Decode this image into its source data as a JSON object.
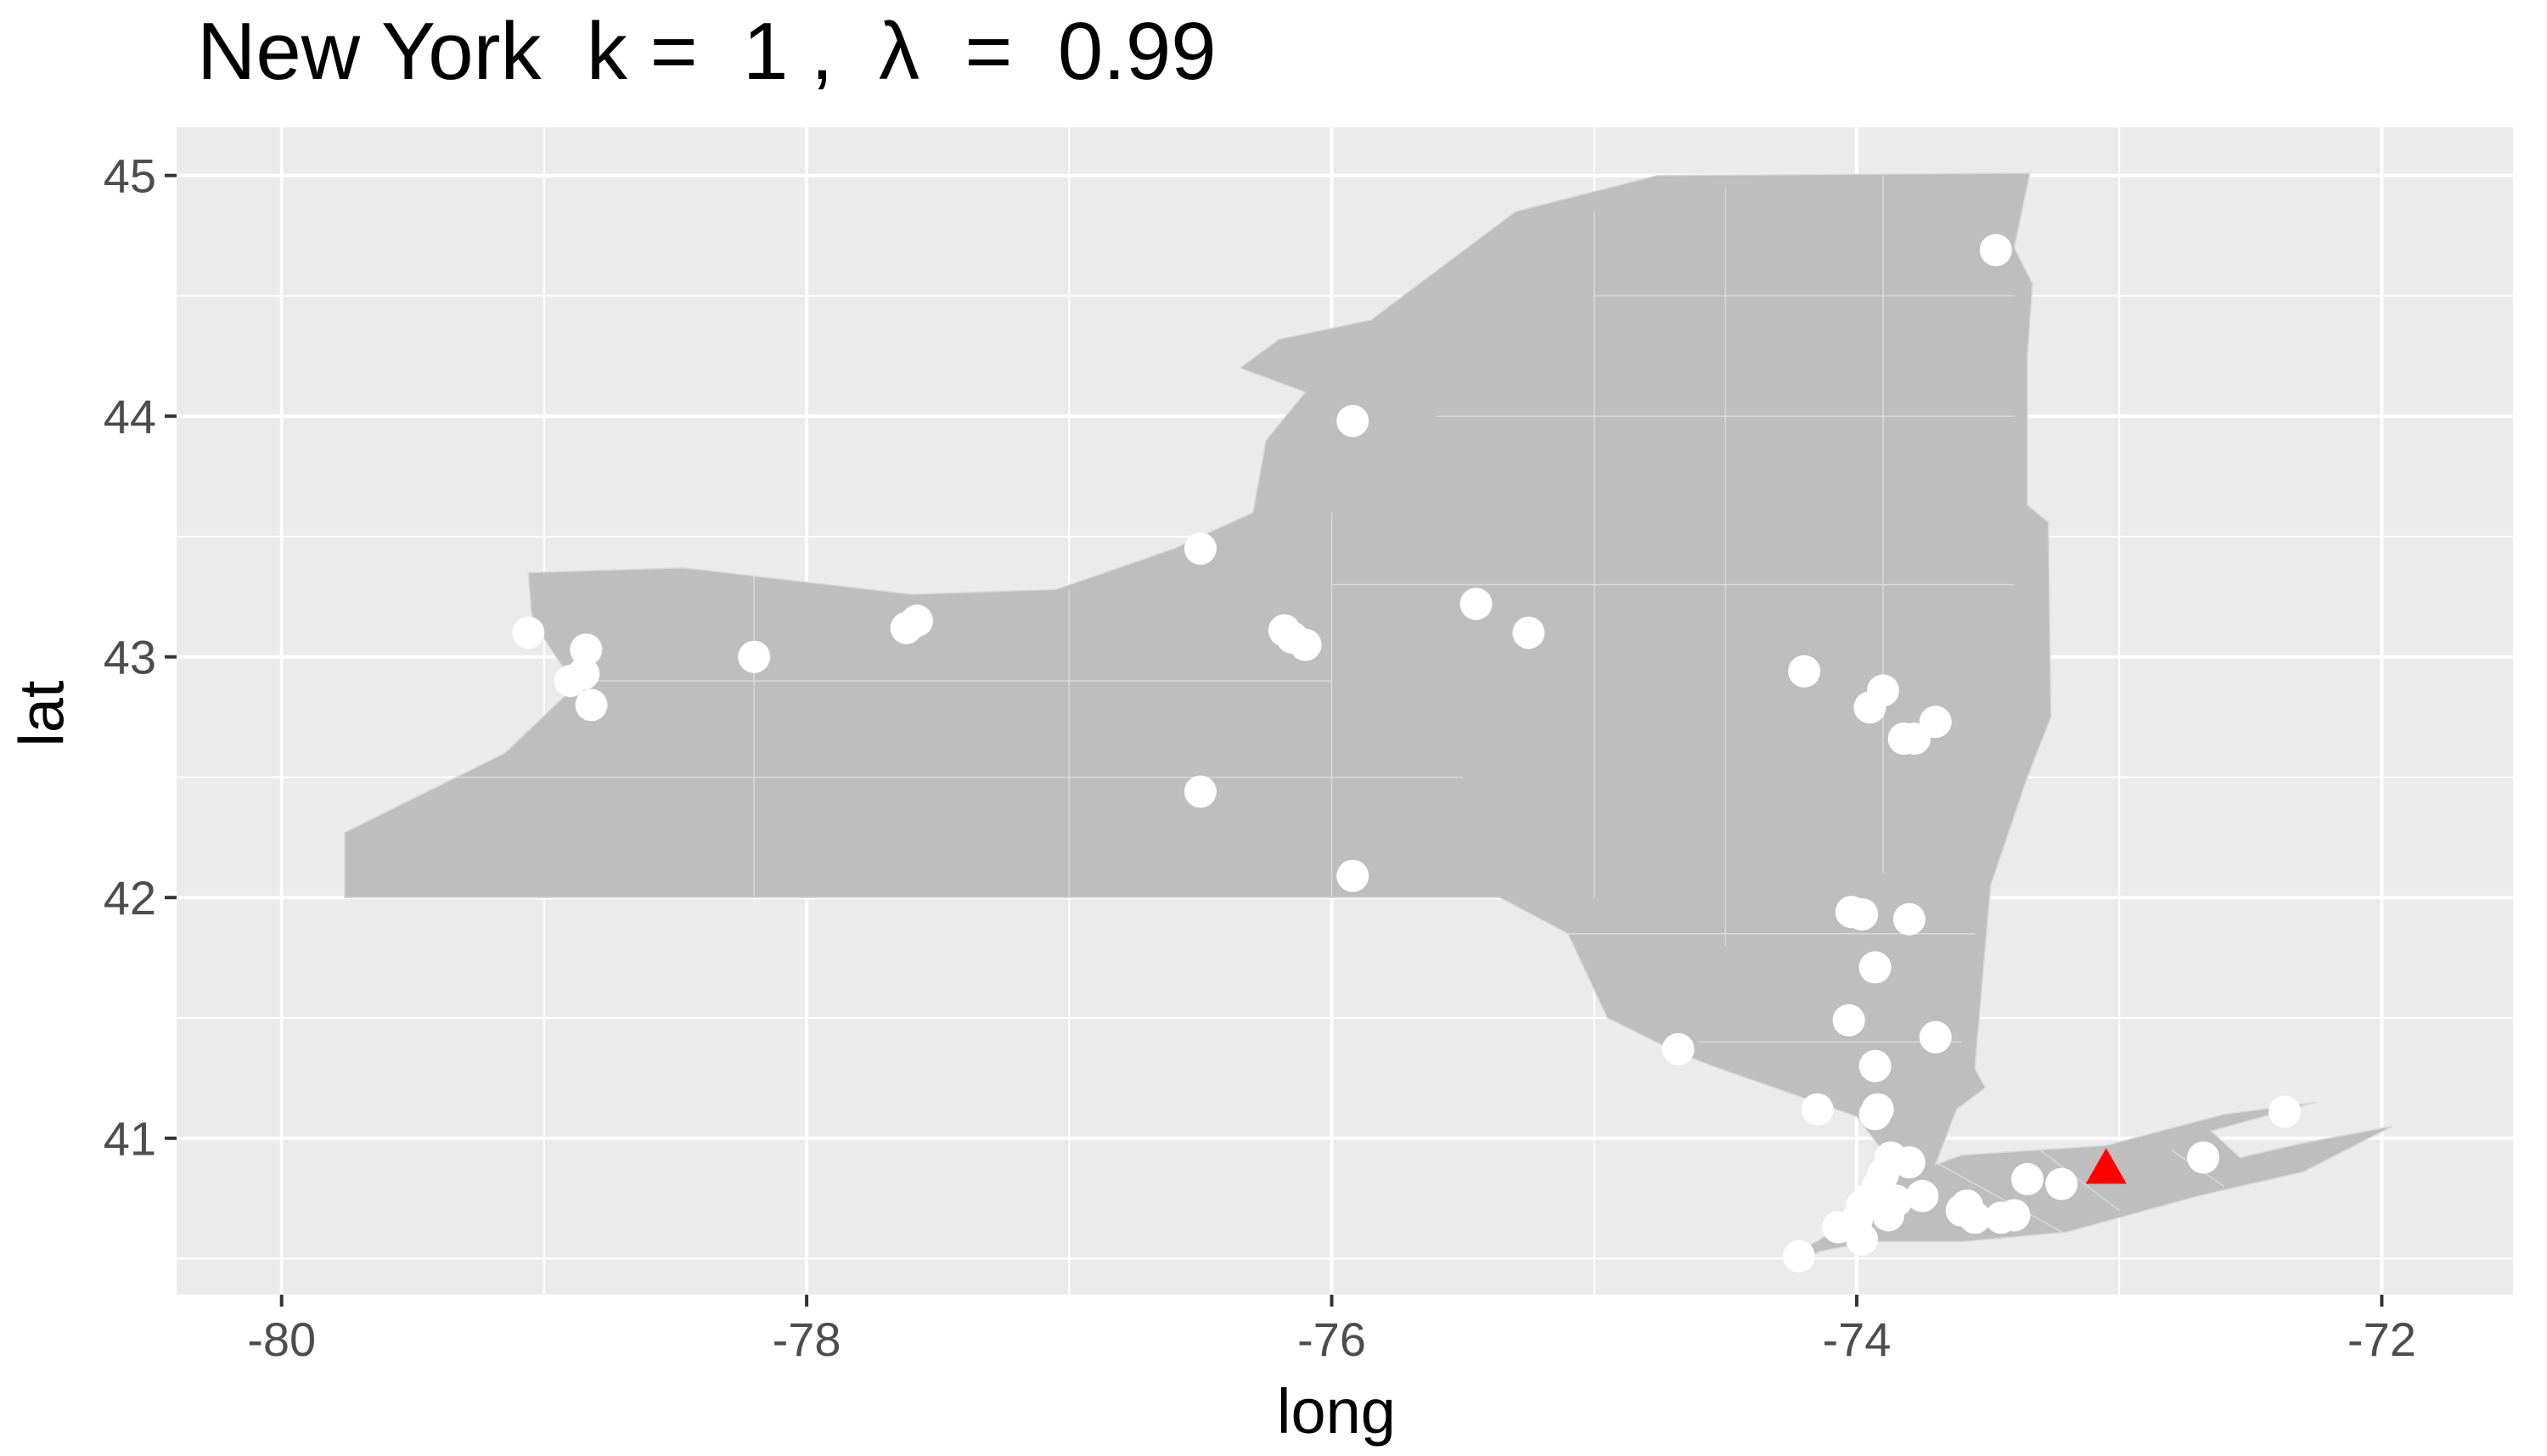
{
  "chart_data": {
    "type": "scatter",
    "title": "New York  k =  1 ,  λ  =  0.99",
    "xlabel": "long",
    "ylabel": "lat",
    "xlim": [
      -80.4,
      -71.5
    ],
    "ylim": [
      40.35,
      45.2
    ],
    "x_ticks": [
      -80,
      -78,
      -76,
      -74,
      -72
    ],
    "y_ticks": [
      41,
      42,
      43,
      44,
      45
    ],
    "x_tick_labels": [
      "-80",
      "-78",
      "-76",
      "-74",
      "-72"
    ],
    "y_tick_labels": [
      "41",
      "42",
      "43",
      "44",
      "45"
    ],
    "grid": true,
    "colors": {
      "panel": "#ebebeb",
      "grid": "#ffffff",
      "state_fill": "#bebebe",
      "tract_lines": "#d9d9d9",
      "points": "#ffffff",
      "highlight": "#ff0000"
    },
    "series": [
      {
        "marker": "circle",
        "color": "#ffffff",
        "points": [
          {
            "x": -79.06,
            "y": 43.1
          },
          {
            "x": -78.84,
            "y": 43.03
          },
          {
            "x": -78.9,
            "y": 42.9
          },
          {
            "x": -78.85,
            "y": 42.93
          },
          {
            "x": -78.82,
            "y": 42.8
          },
          {
            "x": -78.2,
            "y": 43.0
          },
          {
            "x": -77.62,
            "y": 43.12
          },
          {
            "x": -77.58,
            "y": 43.15
          },
          {
            "x": -76.5,
            "y": 43.45
          },
          {
            "x": -76.5,
            "y": 42.44
          },
          {
            "x": -76.18,
            "y": 43.11
          },
          {
            "x": -76.15,
            "y": 43.08
          },
          {
            "x": -76.1,
            "y": 43.05
          },
          {
            "x": -75.92,
            "y": 43.98
          },
          {
            "x": -75.92,
            "y": 42.09
          },
          {
            "x": -75.45,
            "y": 43.22
          },
          {
            "x": -75.25,
            "y": 43.1
          },
          {
            "x": -74.2,
            "y": 42.94
          },
          {
            "x": -73.95,
            "y": 42.79
          },
          {
            "x": -73.9,
            "y": 42.86
          },
          {
            "x": -73.82,
            "y": 42.66
          },
          {
            "x": -73.78,
            "y": 42.66
          },
          {
            "x": -73.7,
            "y": 42.73
          },
          {
            "x": -73.47,
            "y": 44.69
          },
          {
            "x": -74.02,
            "y": 41.94
          },
          {
            "x": -73.98,
            "y": 41.93
          },
          {
            "x": -73.8,
            "y": 41.91
          },
          {
            "x": -73.93,
            "y": 41.71
          },
          {
            "x": -74.03,
            "y": 41.49
          },
          {
            "x": -73.93,
            "y": 41.3
          },
          {
            "x": -73.7,
            "y": 41.42
          },
          {
            "x": -74.68,
            "y": 41.37
          },
          {
            "x": -73.93,
            "y": 41.1
          },
          {
            "x": -74.15,
            "y": 41.12
          },
          {
            "x": -73.92,
            "y": 41.12
          },
          {
            "x": -73.87,
            "y": 40.92
          },
          {
            "x": -73.8,
            "y": 40.9
          },
          {
            "x": -74.07,
            "y": 40.63
          },
          {
            "x": -73.98,
            "y": 40.72
          },
          {
            "x": -73.95,
            "y": 40.75
          },
          {
            "x": -73.92,
            "y": 40.8
          },
          {
            "x": -73.85,
            "y": 40.74
          },
          {
            "x": -73.88,
            "y": 40.68
          },
          {
            "x": -73.98,
            "y": 40.58
          },
          {
            "x": -74.22,
            "y": 40.51
          },
          {
            "x": -74.0,
            "y": 40.66
          },
          {
            "x": -73.9,
            "y": 40.85
          },
          {
            "x": -73.75,
            "y": 40.76
          },
          {
            "x": -73.58,
            "y": 40.72
          },
          {
            "x": -73.55,
            "y": 40.67
          },
          {
            "x": -73.45,
            "y": 40.67
          },
          {
            "x": -73.4,
            "y": 40.68
          },
          {
            "x": -73.35,
            "y": 40.83
          },
          {
            "x": -73.22,
            "y": 40.81
          },
          {
            "x": -72.68,
            "y": 40.92
          },
          {
            "x": -72.37,
            "y": 41.11
          },
          {
            "x": -73.6,
            "y": 40.7
          }
        ]
      },
      {
        "marker": "triangle",
        "color": "#ff0000",
        "points": [
          {
            "x": -73.05,
            "y": 40.87
          }
        ]
      }
    ],
    "outline_lonlat": [
      [
        -79.76,
        42.0
      ],
      [
        -75.36,
        42.0
      ],
      [
        -75.1,
        41.85
      ],
      [
        -74.95,
        41.5
      ],
      [
        -74.69,
        41.36
      ],
      [
        -74.55,
        41.3
      ],
      [
        -74.0,
        41.09
      ],
      [
        -73.91,
        40.96
      ],
      [
        -73.9,
        40.88
      ],
      [
        -74.04,
        40.7
      ],
      [
        -74.05,
        40.64
      ],
      [
        -74.26,
        40.5
      ],
      [
        -74.24,
        40.47
      ],
      [
        -74.14,
        40.53
      ],
      [
        -73.95,
        40.57
      ],
      [
        -73.6,
        40.57
      ],
      [
        -73.2,
        40.61
      ],
      [
        -72.7,
        40.76
      ],
      [
        -72.3,
        40.86
      ],
      [
        -71.96,
        41.05
      ],
      [
        -72.3,
        40.98
      ],
      [
        -72.54,
        40.92
      ],
      [
        -72.65,
        41.03
      ],
      [
        -72.25,
        41.15
      ],
      [
        -72.6,
        41.1
      ],
      [
        -73.05,
        40.97
      ],
      [
        -73.6,
        40.93
      ],
      [
        -73.7,
        40.89
      ],
      [
        -73.62,
        41.12
      ],
      [
        -73.51,
        41.21
      ],
      [
        -73.55,
        41.29
      ],
      [
        -73.49,
        42.05
      ],
      [
        -73.35,
        42.5
      ],
      [
        -73.26,
        42.75
      ],
      [
        -73.27,
        43.56
      ],
      [
        -73.35,
        43.63
      ],
      [
        -73.35,
        44.25
      ],
      [
        -73.33,
        44.55
      ],
      [
        -73.4,
        44.7
      ],
      [
        -73.34,
        45.01
      ],
      [
        -74.76,
        45.0
      ],
      [
        -75.3,
        44.85
      ],
      [
        -75.85,
        44.4
      ],
      [
        -76.2,
        44.32
      ],
      [
        -76.35,
        44.2
      ],
      [
        -76.1,
        44.1
      ],
      [
        -76.25,
        43.9
      ],
      [
        -76.3,
        43.6
      ],
      [
        -76.6,
        43.45
      ],
      [
        -77.05,
        43.28
      ],
      [
        -77.6,
        43.26
      ],
      [
        -78.47,
        43.37
      ],
      [
        -79.06,
        43.35
      ],
      [
        -79.05,
        43.2
      ],
      [
        -79.04,
        43.14
      ],
      [
        -78.93,
        42.96
      ],
      [
        -78.88,
        42.88
      ],
      [
        -79.15,
        42.6
      ],
      [
        -79.76,
        42.27
      ]
    ],
    "interior_lines_lonlat": [
      [
        [
          -78.2,
          43.35
        ],
        [
          -78.2,
          42.0
        ]
      ],
      [
        [
          -77.0,
          43.28
        ],
        [
          -77.0,
          42.0
        ]
      ],
      [
        [
          -76.0,
          43.6
        ],
        [
          -76.0,
          42.0
        ]
      ],
      [
        [
          -75.0,
          44.85
        ],
        [
          -75.0,
          42.0
        ]
      ],
      [
        [
          -74.5,
          44.95
        ],
        [
          -74.5,
          41.8
        ]
      ],
      [
        [
          -73.9,
          45.0
        ],
        [
          -73.9,
          42.1
        ]
      ],
      [
        [
          -79.4,
          42.5
        ],
        [
          -75.5,
          42.5
        ]
      ],
      [
        [
          -78.9,
          42.9
        ],
        [
          -76.0,
          42.9
        ]
      ],
      [
        [
          -76.0,
          43.3
        ],
        [
          -73.4,
          43.3
        ]
      ],
      [
        [
          -75.6,
          44.0
        ],
        [
          -73.4,
          44.0
        ]
      ],
      [
        [
          -75.0,
          44.5
        ],
        [
          -73.4,
          44.5
        ]
      ],
      [
        [
          -75.1,
          41.85
        ],
        [
          -73.55,
          41.85
        ]
      ],
      [
        [
          -74.6,
          41.4
        ],
        [
          -73.6,
          41.4
        ]
      ],
      [
        [
          -73.7,
          40.9
        ],
        [
          -73.2,
          40.6
        ]
      ],
      [
        [
          -73.3,
          40.95
        ],
        [
          -73.0,
          40.7
        ]
      ],
      [
        [
          -72.8,
          40.95
        ],
        [
          -72.6,
          40.8
        ]
      ]
    ]
  }
}
